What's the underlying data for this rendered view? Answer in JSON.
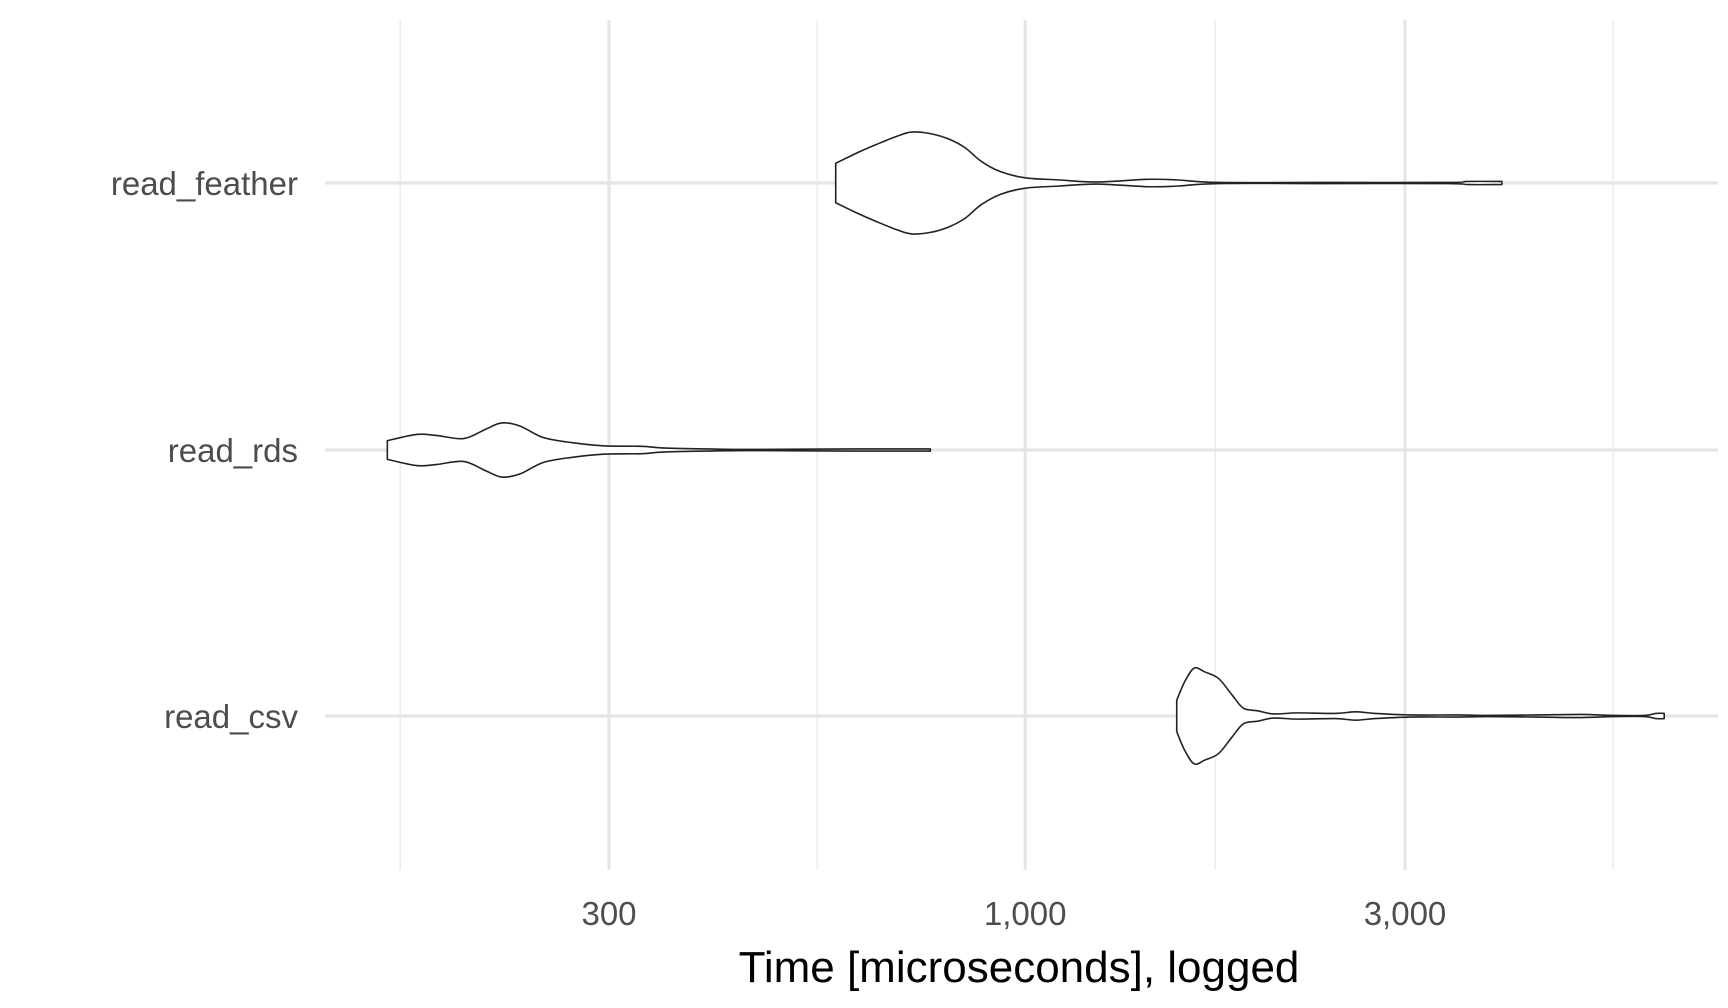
{
  "chart_data": {
    "type": "violin",
    "title": "",
    "xlabel": "Time [microseconds], logged",
    "ylabel": "",
    "x_scale": "log10",
    "xlim": [
      133,
      7000
    ],
    "grid": true,
    "legend": "none",
    "x_ticks": [
      {
        "value": 300,
        "label": "300"
      },
      {
        "value": 1000,
        "label": "1,000"
      },
      {
        "value": 3000,
        "label": "3,000"
      }
    ],
    "x_minor_ticks": [
      164,
      548,
      1732,
      5477
    ],
    "categories": [
      "read_feather",
      "read_rds",
      "read_csv"
    ],
    "series": [
      {
        "name": "read_feather",
        "min": 578,
        "max": 3970,
        "density": [
          [
            578,
            0.38
          ],
          [
            615,
            0.58
          ],
          [
            650,
            0.74
          ],
          [
            690,
            0.9
          ],
          [
            720,
            0.98
          ],
          [
            760,
            0.95
          ],
          [
            800,
            0.85
          ],
          [
            840,
            0.68
          ],
          [
            880,
            0.42
          ],
          [
            930,
            0.22
          ],
          [
            1000,
            0.1
          ],
          [
            1100,
            0.06
          ],
          [
            1230,
            0.02
          ],
          [
            1420,
            0.07
          ],
          [
            1550,
            0.06
          ],
          [
            1750,
            0.01
          ],
          [
            2400,
            0.01
          ],
          [
            3400,
            0.01
          ],
          [
            3600,
            0.03
          ],
          [
            3970,
            0.03
          ]
        ]
      },
      {
        "name": "read_rds",
        "min": 158,
        "max": 760,
        "density": [
          [
            158,
            0.18
          ],
          [
            172,
            0.3
          ],
          [
            182,
            0.28
          ],
          [
            197,
            0.22
          ],
          [
            210,
            0.4
          ],
          [
            220,
            0.52
          ],
          [
            232,
            0.46
          ],
          [
            248,
            0.24
          ],
          [
            270,
            0.14
          ],
          [
            295,
            0.08
          ],
          [
            330,
            0.07
          ],
          [
            350,
            0.04
          ],
          [
            400,
            0.02
          ],
          [
            450,
            0.01
          ],
          [
            610,
            0.02
          ],
          [
            720,
            0.02
          ],
          [
            760,
            0.02
          ]
        ]
      },
      {
        "name": "read_csv",
        "min": 1550,
        "max": 6350,
        "density": [
          [
            1550,
            0.3
          ],
          [
            1585,
            0.65
          ],
          [
            1630,
            0.92
          ],
          [
            1680,
            0.85
          ],
          [
            1750,
            0.72
          ],
          [
            1820,
            0.4
          ],
          [
            1880,
            0.15
          ],
          [
            1960,
            0.1
          ],
          [
            2050,
            0.04
          ],
          [
            2200,
            0.06
          ],
          [
            2450,
            0.05
          ],
          [
            2600,
            0.08
          ],
          [
            2750,
            0.05
          ],
          [
            3050,
            0.02
          ],
          [
            3500,
            0.02
          ],
          [
            3800,
            0.01
          ],
          [
            4400,
            0.02
          ],
          [
            5000,
            0.03
          ],
          [
            5500,
            0.01
          ],
          [
            6000,
            0.01
          ],
          [
            6200,
            0.05
          ],
          [
            6350,
            0.05
          ]
        ]
      }
    ]
  }
}
